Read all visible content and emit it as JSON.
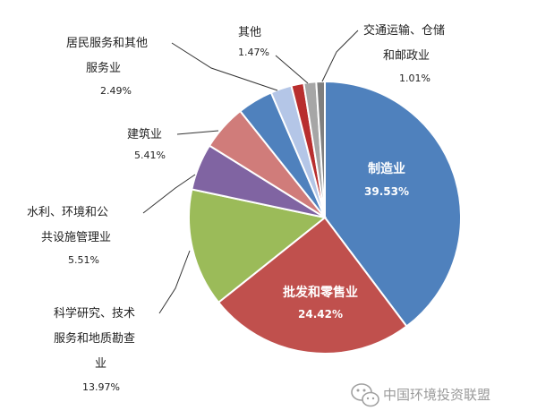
{
  "chart_data": {
    "type": "pie",
    "start_angle_deg": 0,
    "direction": "clockwise",
    "slices": [
      {
        "lines": [
          "制造业"
        ],
        "value": 39.53,
        "value_label": "39.53%",
        "color": "#4f81bd",
        "inside": true
      },
      {
        "lines": [
          "批发和零售业"
        ],
        "value": 24.42,
        "value_label": "24.42%",
        "color": "#c0504d",
        "inside": true
      },
      {
        "lines": [
          "科学研究、技术",
          "服务和地质勘查",
          "业"
        ],
        "value": 13.97,
        "value_label": "13.97%",
        "color": "#9bbb59",
        "inside": false
      },
      {
        "lines": [
          "水利、环境和公",
          "共设施管理业"
        ],
        "value": 5.51,
        "value_label": "5.51%",
        "color": "#8064a2",
        "inside": false
      },
      {
        "lines": [
          "建筑业"
        ],
        "value": 5.41,
        "value_label": "5.41%",
        "color": "#d07c7a",
        "inside": false
      },
      {
        "lines": [],
        "value": 4.2,
        "value_label": "",
        "color": "#4f81bd",
        "inside": false
      },
      {
        "lines": [
          "居民服务和其他",
          "服务业"
        ],
        "value": 2.49,
        "value_label": "2.49%",
        "color": "#b4c6e7",
        "inside": false
      },
      {
        "lines": [],
        "value": 1.47,
        "value_label": "",
        "color": "#b82e2e",
        "inside": false
      },
      {
        "lines": [
          "其他"
        ],
        "value": 1.47,
        "value_label": "1.47%",
        "color": "#a6a6a6",
        "inside": false
      },
      {
        "lines": [
          "交通运输、仓储",
          "和邮政业"
        ],
        "value": 1.01,
        "value_label": "1.01%",
        "color": "#7f7f7f",
        "inside": false
      }
    ]
  },
  "watermark": {
    "text": "中国环境投资联盟",
    "icon": "wechat-icon"
  }
}
